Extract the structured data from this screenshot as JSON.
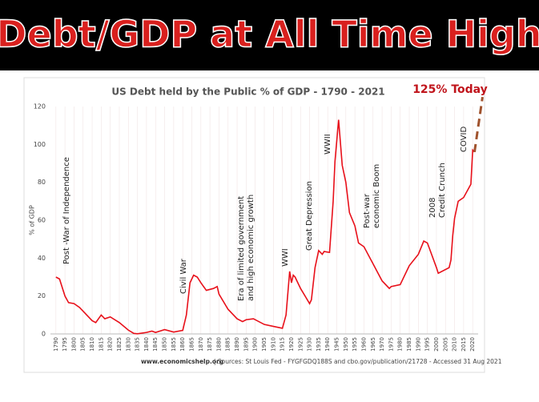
{
  "banner": "Debt/GDP at All Time High",
  "chart_data": {
    "type": "line",
    "title": "US Debt held by the Public % of GDP - 1790 - 2021",
    "y_label": "% of GDP",
    "color": "#e8101a",
    "x": [
      1790,
      1792,
      1795,
      1797,
      1800,
      1803,
      1805,
      1810,
      1812,
      1815,
      1817,
      1820,
      1825,
      1830,
      1833,
      1835,
      1840,
      1843,
      1845,
      1850,
      1855,
      1860,
      1862,
      1864,
      1866,
      1868,
      1870,
      1873,
      1877,
      1879,
      1880,
      1885,
      1890,
      1893,
      1895,
      1899,
      1905,
      1910,
      1915,
      1917,
      1919,
      1920,
      1921,
      1922,
      1925,
      1930,
      1931,
      1933,
      1935,
      1937,
      1938,
      1941,
      1943,
      1944,
      1946,
      1948,
      1950,
      1952,
      1955,
      1957,
      1960,
      1965,
      1970,
      1974,
      1975,
      1980,
      1985,
      1990,
      1993,
      1995,
      2000,
      2001,
      2007,
      2008,
      2009,
      2010,
      2012,
      2015,
      2019,
      2020,
      2021
    ],
    "values": [
      30,
      29,
      20,
      16.5,
      16,
      14,
      12,
      7,
      6,
      10,
      8,
      9,
      6,
      2,
      0.3,
      0.1,
      0.8,
      1.5,
      0.8,
      2.3,
      1,
      1.9,
      10,
      27,
      31,
      30,
      27,
      23,
      24,
      25,
      21,
      13,
      8,
      6.5,
      7.5,
      8,
      5,
      4,
      3,
      10,
      33,
      27,
      31,
      30,
      24,
      16,
      18,
      35,
      44,
      42,
      43.5,
      43,
      70,
      91,
      113,
      89,
      80,
      64,
      57,
      48,
      46,
      37,
      28,
      24,
      25,
      26,
      36,
      42,
      49,
      48,
      35,
      32,
      35,
      39,
      52,
      61,
      70,
      72,
      79,
      97,
      96
    ],
    "xlim": [
      1787,
      2023
    ],
    "ylim": [
      0,
      120
    ],
    "xticks": [
      1790,
      1795,
      1800,
      1805,
      1810,
      1815,
      1820,
      1825,
      1830,
      1835,
      1840,
      1845,
      1850,
      1855,
      1860,
      1865,
      1870,
      1875,
      1880,
      1885,
      1890,
      1895,
      1900,
      1905,
      1910,
      1915,
      1920,
      1925,
      1930,
      1935,
      1940,
      1945,
      1950,
      1955,
      1960,
      1965,
      1970,
      1975,
      1980,
      1985,
      1990,
      1995,
      2000,
      2005,
      2010,
      2015,
      2020
    ],
    "yticks": [
      0,
      20,
      40,
      60,
      80,
      100,
      120
    ],
    "annotations": [
      [
        "Post -War of Independence"
      ],
      [
        "Civil War"
      ],
      [
        "Era of limited government",
        "and high economic growth"
      ],
      [
        "WWI"
      ],
      [
        "Great Depression"
      ],
      [
        "WWII"
      ],
      [
        "Post-war",
        "economic Boom"
      ],
      [
        "2008",
        "Credit Crunch"
      ],
      [
        "COVID"
      ]
    ],
    "projection": {
      "label": "125% Today",
      "value": 125
    },
    "source_site": "www.economicshelp.org",
    "source_text": "| Sources: St Louis Fed - FYGFGDQ188S and cbo.gov/publication/21728 - Accessed 31 Aug 2021"
  }
}
